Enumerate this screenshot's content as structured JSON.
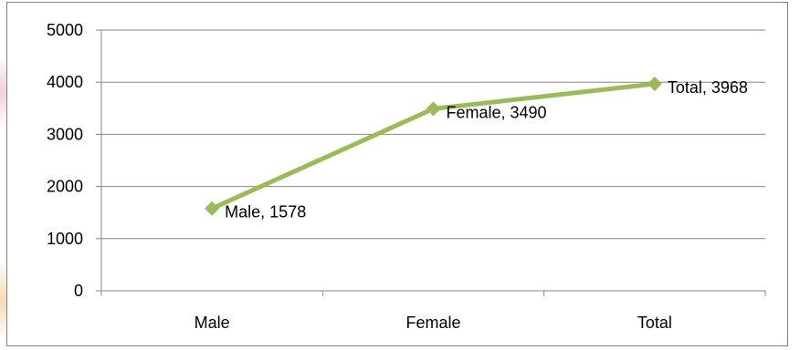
{
  "chart_data": {
    "type": "line",
    "categories": [
      "Male",
      "Female",
      "Total"
    ],
    "series": [
      {
        "values": [
          1578,
          3490,
          3968
        ],
        "color": "#9bbb59"
      }
    ],
    "data_labels": [
      "Male, 1578",
      "Female, 3490",
      "Total, 3968"
    ],
    "yticks": [
      "0",
      "1000",
      "2000",
      "3000",
      "4000",
      "5000"
    ],
    "ylim": [
      0,
      5000
    ],
    "grid": true,
    "gridline_color": "#868686",
    "marker": "diamond",
    "title": "",
    "xlabel": "",
    "ylabel": ""
  }
}
